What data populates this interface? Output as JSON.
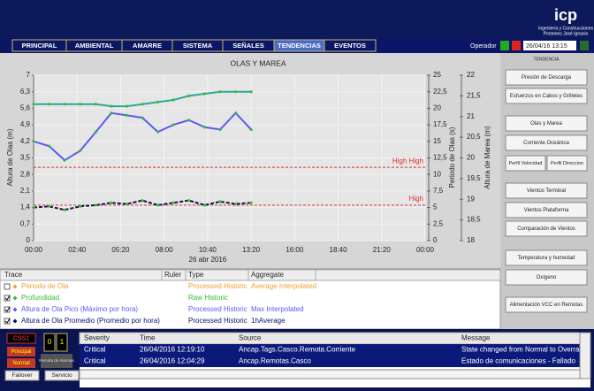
{
  "header": {
    "logo": "icp",
    "tagline": [
      "Ingeniería y Construcciones",
      "Pontones José Ignacio"
    ]
  },
  "nav": {
    "tabs": [
      "PRINCIPAL",
      "AMBIENTAL",
      "AMARRE",
      "SISTEMA",
      "SEÑALES",
      "TENDENCIAS",
      "EVENTOS"
    ],
    "active": 5,
    "user": "Operador",
    "datetime": "26/04/16 13:15"
  },
  "trend_label": "TENDENCIA",
  "chart_data": {
    "type": "line",
    "title": "OLAS Y MAREA",
    "xlabel": "26 abr 2016",
    "ylabel": "Altura de Olas (m)",
    "y2label": "Periodo de Olas (s)",
    "y3label": "Altura de Marea (m)",
    "xlim": [
      0,
      1440
    ],
    "xticks": [
      {
        "value": 0,
        "label": "00:00"
      },
      {
        "value": 160,
        "label": "02:40"
      },
      {
        "value": 320,
        "label": "05:20"
      },
      {
        "value": 480,
        "label": "08:00"
      },
      {
        "value": 640,
        "label": "10:40"
      },
      {
        "value": 800,
        "label": "13:20"
      },
      {
        "value": 960,
        "label": "16:00"
      },
      {
        "value": 1120,
        "label": "18:40"
      },
      {
        "value": 1280,
        "label": "21:20"
      },
      {
        "value": 1440,
        "label": "00:00"
      }
    ],
    "ylim": [
      0,
      7
    ],
    "yticks": [
      0,
      {
        "value": 0.7,
        "label": "0,7"
      },
      {
        "value": 1.4,
        "label": "1,4"
      },
      {
        "value": 2.1,
        "label": "2,1"
      },
      {
        "value": 2.8,
        "label": "2,8"
      },
      {
        "value": 3.5,
        "label": "3,5"
      },
      {
        "value": 4.2,
        "label": "4,2"
      },
      {
        "value": 4.9,
        "label": "4,9"
      },
      {
        "value": 5.6,
        "label": "5,6"
      },
      {
        "value": 6.3,
        "label": "6,3"
      },
      7
    ],
    "y2lim": [
      0,
      25
    ],
    "y2ticks": [
      0,
      {
        "value": 2.5,
        "label": "2,5"
      },
      5,
      {
        "value": 7.5,
        "label": "7,5"
      },
      10,
      {
        "value": 12.5,
        "label": "12,5"
      },
      15,
      {
        "value": 17.5,
        "label": "17,5"
      },
      20,
      {
        "value": 22.5,
        "label": "22,5"
      },
      25
    ],
    "y3lim": [
      18,
      22
    ],
    "y3ticks": [
      18,
      {
        "value": 18.5,
        "label": "18,5"
      },
      19,
      {
        "value": 19.5,
        "label": "19,5"
      },
      20,
      {
        "value": 20.5,
        "label": "20,5"
      },
      21,
      {
        "value": 21.5,
        "label": "21,5"
      },
      22
    ],
    "grid": true,
    "series": [
      {
        "name": "Profundidad",
        "color": "#2aa89a",
        "axis": "y3",
        "marker_color": "#33bb33",
        "x": [
          0,
          57,
          114,
          171,
          229,
          286,
          343,
          400,
          457,
          514,
          571,
          629,
          686,
          743,
          800
        ],
        "values": [
          21.3,
          21.3,
          21.3,
          21.3,
          21.3,
          21.25,
          21.25,
          21.3,
          21.35,
          21.4,
          21.5,
          21.55,
          21.6,
          21.6,
          21.6
        ]
      },
      {
        "name": "Altura de Ola Pico (Máximo por hora)",
        "color": "#5a5af0",
        "axis": "y",
        "marker_color": "#33bb33",
        "x": [
          0,
          57,
          114,
          171,
          229,
          286,
          343,
          400,
          457,
          514,
          571,
          629,
          686,
          743,
          800
        ],
        "values": [
          4.2,
          4.0,
          3.4,
          3.8,
          4.6,
          5.4,
          5.3,
          5.2,
          4.6,
          4.9,
          5.1,
          4.8,
          4.7,
          5.4,
          4.7
        ]
      },
      {
        "name": "Altura de Ola Promedio (Promedio por hora)",
        "color": "#101040",
        "axis": "y",
        "marker_color": "#33bb33",
        "line_style": "dashed",
        "x": [
          0,
          57,
          114,
          171,
          229,
          286,
          343,
          400,
          457,
          514,
          571,
          629,
          686,
          743,
          800
        ],
        "values": [
          1.4,
          1.45,
          1.3,
          1.45,
          1.5,
          1.6,
          1.55,
          1.7,
          1.5,
          1.6,
          1.7,
          1.5,
          1.65,
          1.55,
          1.6
        ]
      }
    ],
    "limits": [
      {
        "label": "High High",
        "value": 3.1,
        "color": "#e03030"
      },
      {
        "label": "High",
        "value": 1.5,
        "color": "#e03030"
      }
    ]
  },
  "trace_table": {
    "headers": [
      "Trace",
      "Ruler",
      "Type",
      "Aggregate"
    ],
    "rows": [
      {
        "name": "Periodo de Ola",
        "color": "#f0a030",
        "checked": false,
        "type": "Processed Historic",
        "aggregate": "Average Interpolated"
      },
      {
        "name": "Profundidad",
        "color": "#33bb33",
        "checked": true,
        "type": "Raw Historic"
      },
      {
        "name": "Altura de Ola Pico (Máximo por hora)",
        "color": "#5a5af0",
        "checked": true,
        "type": "Processed Historic",
        "aggregate": "Max Interpolated"
      },
      {
        "name": "Altura de Ola Promedio (Promedio por hora)",
        "color": "#101070",
        "checked": true,
        "type": "Processed Historic",
        "aggregate": "1hAverage"
      }
    ]
  },
  "sidebar": {
    "buttons": [
      "Presión de Descarga",
      "Esfuerzos en Cabos y Grilletes",
      "Olas y Marea",
      "Corriente Oceánica",
      "Perfil Velocidad",
      "Perfil Direccion",
      "Vientos Terminal",
      "Vientos Plataforma",
      "Comparación de Vientos",
      "Temperatura y humedad",
      "Oxígeno",
      "Alimentación VCC en Remotas"
    ]
  },
  "status_panel": {
    "station": "CSS1",
    "counts": [
      "0",
      "1"
    ],
    "states": [
      "Principal",
      "Normal"
    ],
    "note": "Remota de Alarmas",
    "buttons": [
      "Failover",
      "Servicio"
    ]
  },
  "alarm_table": {
    "headers": [
      "Severity",
      "Time",
      "Source",
      "Message"
    ],
    "rows": [
      [
        "Critical",
        "26/04/2016 12:19:10",
        "Ancap.Tags.Casco.Remota.Corriente",
        "State changed from Normal to Overran"
      ],
      [
        "Critical",
        "26/04/2016 12:04:29",
        "Ancap.Remotas.Casco",
        "Estado de comunicaciones - Fallado"
      ]
    ]
  }
}
